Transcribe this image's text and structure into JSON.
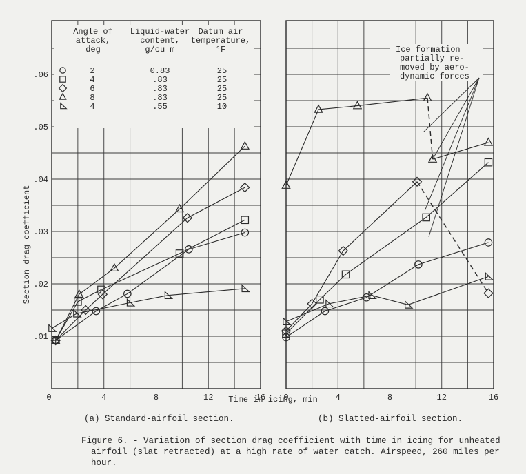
{
  "chart_data": [
    {
      "type": "line",
      "caption": "(a) Standard-airfoil section.",
      "xlabel": "Time in icing, min",
      "ylabel": "Section drag coefficient",
      "xlim": [
        0,
        16
      ],
      "ylim": [
        0,
        0.07
      ],
      "x_ticks": [
        "0",
        "4",
        "8",
        "12",
        "16"
      ],
      "y_ticks": [
        ".01",
        ".02",
        ".03",
        ".04",
        ".05",
        ".06"
      ],
      "grid": true,
      "series": [
        {
          "marker": "circle",
          "x": [
            0.3,
            3.4,
            5.8,
            10.5,
            14.8
          ],
          "y": [
            0.0092,
            0.0148,
            0.0181,
            0.0266,
            0.0298
          ]
        },
        {
          "marker": "square",
          "x": [
            0.3,
            2.0,
            3.8,
            9.8,
            14.8
          ],
          "y": [
            0.0092,
            0.0166,
            0.0189,
            0.0258,
            0.0322
          ]
        },
        {
          "marker": "diamond",
          "x": [
            0.3,
            2.6,
            3.9,
            10.4,
            14.8
          ],
          "y": [
            0.0092,
            0.015,
            0.018,
            0.0326,
            0.0384
          ]
        },
        {
          "marker": "triangle-up",
          "x": [
            0.3,
            2.1,
            4.8,
            9.8,
            14.8
          ],
          "y": [
            0.0092,
            0.018,
            0.023,
            0.0343,
            0.0463
          ]
        },
        {
          "marker": "triangle-right",
          "x": [
            0.0,
            1.9,
            6.0,
            8.9,
            14.8
          ],
          "y": [
            0.0115,
            0.0143,
            0.0164,
            0.0178,
            0.0191
          ]
        }
      ],
      "legend": {
        "headers": [
          "Angle of attack, deg",
          "Liquid-water content, g/cu m",
          "Datum air temperature, °F"
        ],
        "header_lines": [
          [
            "Angle of",
            "attack,",
            "deg"
          ],
          [
            "Liquid-water",
            "content,",
            "g/cu m"
          ],
          [
            "Datum air",
            "temperature,",
            "°F"
          ]
        ],
        "rows": [
          {
            "marker": "circle",
            "angle": "2",
            "lwc": "0.83",
            "temp": "25"
          },
          {
            "marker": "square",
            "angle": "4",
            "lwc": ".83",
            "temp": "25"
          },
          {
            "marker": "diamond",
            "angle": "6",
            "lwc": ".83",
            "temp": "25"
          },
          {
            "marker": "triangle-up",
            "angle": "8",
            "lwc": ".83",
            "temp": "25"
          },
          {
            "marker": "triangle-right",
            "angle": "4",
            "lwc": ".55",
            "temp": "10"
          }
        ]
      }
    },
    {
      "type": "line",
      "caption": "(b) Slatted-airfoil section.",
      "xlabel": "",
      "xlim": [
        0,
        16
      ],
      "ylim": [
        0,
        0.07
      ],
      "x_ticks": [
        "0",
        "4",
        "8",
        "12",
        "16"
      ],
      "grid": true,
      "series": [
        {
          "marker": "circle",
          "x": [
            0,
            3.0,
            6.2,
            10.2,
            15.6
          ],
          "y": [
            0.0098,
            0.0148,
            0.0174,
            0.0237,
            0.0279
          ]
        },
        {
          "marker": "square",
          "x": [
            0,
            2.6,
            4.6,
            10.8,
            15.6
          ],
          "y": [
            0.0105,
            0.017,
            0.0218,
            0.0327,
            0.0432
          ]
        },
        {
          "marker": "diamond",
          "x": [
            0,
            2.0,
            4.4,
            10.1
          ],
          "y": [
            0.011,
            0.0162,
            0.0263,
            0.0395
          ],
          "dashed_to": {
            "x": 15.6,
            "y": 0.0182
          }
        },
        {
          "marker": "triangle-up",
          "x": [
            0,
            2.5,
            5.5,
            10.9
          ],
          "y": [
            0.0388,
            0.0533,
            0.054,
            0.0555
          ],
          "dashed_to": {
            "x": 11.3,
            "y": 0.0438
          },
          "after_removal": {
            "x": [
              11.3,
              15.6
            ],
            "y": [
              0.0438,
              0.047
            ]
          }
        },
        {
          "marker": "triangle-right",
          "x": [
            0,
            3.3,
            6.6,
            9.4,
            15.6
          ],
          "y": [
            0.0128,
            0.0162,
            0.0178,
            0.016,
            0.0214
          ]
        }
      ],
      "annotation": {
        "lines": [
          "Ice formation",
          "partially re-",
          "moved by aero-",
          "dynamic forces"
        ]
      }
    }
  ],
  "figure_caption": {
    "lines": [
      "Figure 6. - Variation of section drag coefficient with time in icing for unheated",
      "airfoil (slat retracted) at a high rate of water catch. Airspeed, 260 miles per",
      "hour."
    ]
  }
}
